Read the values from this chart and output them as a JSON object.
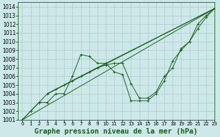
{
  "title": "Graphe pression niveau de la mer (hPa)",
  "bg_color": "#cce8e8",
  "grid_color": "#aacccc",
  "line_color": "#1a5c1a",
  "xlim": [
    -0.5,
    23
  ],
  "ylim": [
    1001,
    1014.5
  ],
  "xticks": [
    0,
    1,
    2,
    3,
    4,
    5,
    6,
    7,
    8,
    9,
    10,
    11,
    12,
    13,
    14,
    15,
    16,
    17,
    18,
    19,
    20,
    21,
    22,
    23
  ],
  "yticks": [
    1001,
    1002,
    1003,
    1004,
    1005,
    1006,
    1007,
    1008,
    1009,
    1010,
    1011,
    1012,
    1013,
    1014
  ],
  "series": [
    {
      "x": [
        0,
        1,
        2,
        3,
        4,
        5,
        6,
        7,
        8,
        9,
        10,
        11,
        12,
        13,
        14,
        15,
        16,
        17,
        18,
        19,
        20,
        21,
        22,
        23
      ],
      "y": [
        1001,
        1002,
        1003,
        1003,
        1004,
        1004,
        1006,
        1008.5,
        1008.3,
        1007.5,
        1007.5,
        1006.5,
        1006.2,
        1003.2,
        1003.2,
        1003.2,
        1004.0,
        1005.5,
        1007.8,
        1009.0,
        1010.0,
        1012.0,
        1013.0,
        1013.8
      ],
      "marker": true
    },
    {
      "x": [
        0,
        23
      ],
      "y": [
        1001,
        1013.8
      ],
      "marker": false
    },
    {
      "x": [
        3,
        23
      ],
      "y": [
        1004,
        1013.8
      ],
      "marker": false
    },
    {
      "x": [
        3,
        10,
        23
      ],
      "y": [
        1004,
        1007.5,
        1013.8
      ],
      "marker": false
    },
    {
      "x": [
        0,
        1,
        2,
        3,
        4,
        5,
        6,
        7,
        8,
        9,
        10,
        11,
        12,
        13,
        14,
        15,
        16,
        17,
        18,
        19,
        20,
        21,
        22,
        23
      ],
      "y": [
        1001,
        1002,
        1003,
        1004,
        1004.5,
        1005.0,
        1005.5,
        1006.0,
        1006.5,
        1007.0,
        1007.3,
        1007.5,
        1007.5,
        1005.2,
        1003.5,
        1003.5,
        1004.2,
        1006.0,
        1007.0,
        1009.2,
        1010.0,
        1011.5,
        1012.8,
        1013.8
      ],
      "marker": true
    }
  ],
  "xtick_fontsize": 5.0,
  "ytick_fontsize": 5.5,
  "xlabel_fontsize": 7.5
}
